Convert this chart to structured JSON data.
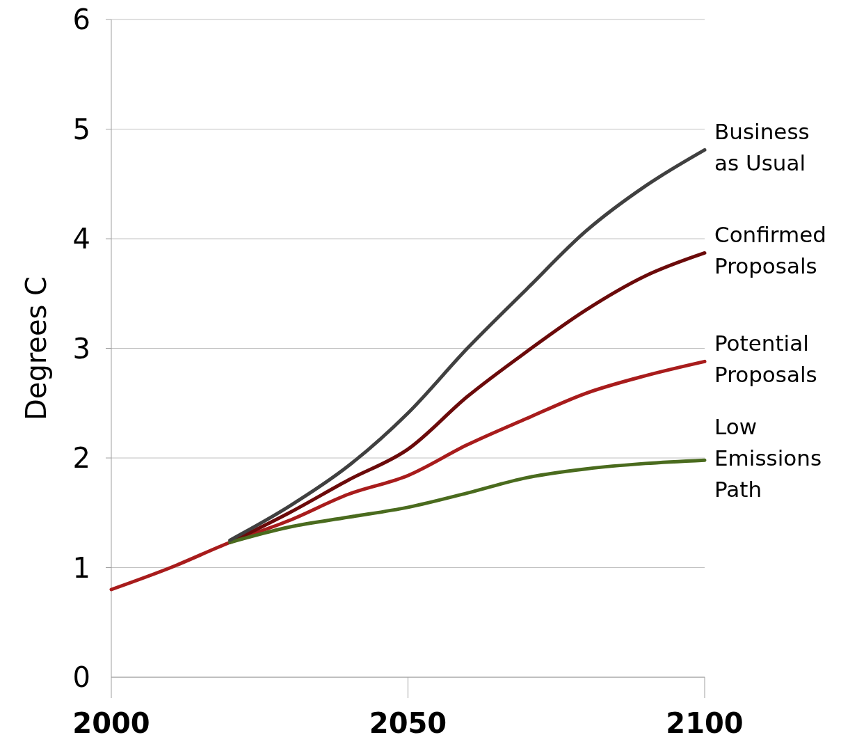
{
  "chart_data": {
    "type": "line",
    "ylabel": "Degrees C",
    "x": [
      2000,
      2010,
      2020,
      2030,
      2040,
      2050,
      2060,
      2070,
      2080,
      2090,
      2100
    ],
    "xlim": [
      2000,
      2100
    ],
    "xticks": [
      2000,
      2050,
      2100
    ],
    "ylim": [
      0,
      6
    ],
    "yticks": [
      0,
      1,
      2,
      3,
      4,
      5,
      6
    ],
    "grid": "y",
    "series": [
      {
        "name": "Potential Proposals",
        "color": "#a81c1c",
        "values": [
          0.8,
          1.0,
          1.23,
          1.43,
          1.67,
          1.84,
          2.12,
          2.36,
          2.59,
          2.75,
          2.88
        ]
      },
      {
        "name": "Confirmed Proposals",
        "color": "#6b0a0a",
        "values": [
          null,
          null,
          1.23,
          1.5,
          1.8,
          2.08,
          2.56,
          2.97,
          3.35,
          3.66,
          3.87
        ]
      },
      {
        "name": "Low Emissions Path",
        "color": "#4a6b1e",
        "values": [
          null,
          null,
          1.23,
          1.37,
          1.46,
          1.55,
          1.68,
          1.82,
          1.9,
          1.95,
          1.98
        ]
      },
      {
        "name": "Business as Usual",
        "color": "#404040",
        "values": [
          null,
          null,
          1.25,
          1.56,
          1.93,
          2.41,
          3.0,
          3.54,
          4.07,
          4.48,
          4.81
        ]
      }
    ]
  }
}
